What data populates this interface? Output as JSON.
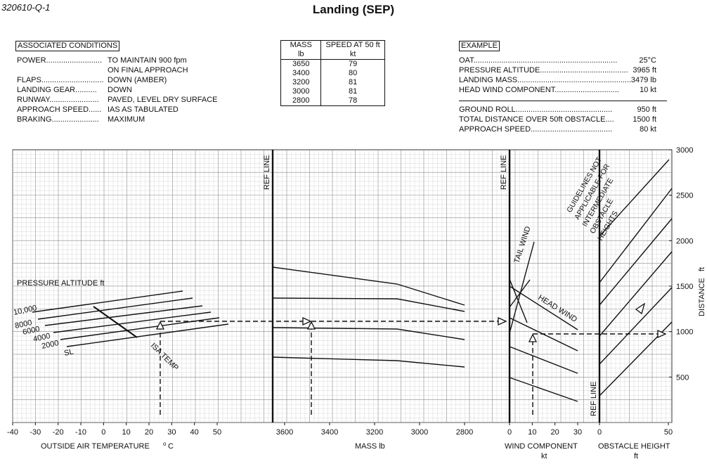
{
  "question_id": "320610-Q-1",
  "title": "Landing (SEP)",
  "associated_conditions": {
    "heading": "ASSOCIATED CONDITIONS",
    "rows": [
      {
        "label": "POWER..........................",
        "value": "TO MAINTAIN 900 fpm"
      },
      {
        "label": "",
        "value": "ON FINAL APPROACH"
      },
      {
        "label": "FLAPS.............................",
        "value": "DOWN (AMBER)"
      },
      {
        "label": "LANDING GEAR..........",
        "value": "DOWN"
      },
      {
        "label": "RUNWAY.......................",
        "value": "PAVED, LEVEL DRY SURFACE"
      },
      {
        "label": "APPROACH SPEED......",
        "value": "IAS AS TABULATED"
      },
      {
        "label": "BRAKING......................",
        "value": "MAXIMUM"
      }
    ]
  },
  "speed_table": {
    "col1_header_1": "MASS",
    "col1_header_2": "lb",
    "col2_header_1": "SPEED AT 50 ft",
    "col2_header_2": "kt",
    "rows": [
      {
        "mass": "3650",
        "speed": "79"
      },
      {
        "mass": "3400",
        "speed": "80"
      },
      {
        "mass": "3200",
        "speed": "81"
      },
      {
        "mass": "3000",
        "speed": "81"
      },
      {
        "mass": "2800",
        "speed": "78"
      }
    ]
  },
  "example": {
    "heading": "EXAMPLE",
    "inputs": [
      {
        "label": "OAT...................................................................",
        "value": "25°C"
      },
      {
        "label": "PRESSURE ALTITUDE.........................................",
        "value": "3965 ft"
      },
      {
        "label": "LANDING MASS.....................................................",
        "value": "3479 lb"
      },
      {
        "label": "HEAD WIND COMPONENT..............................",
        "value": "10 kt"
      }
    ],
    "results": [
      {
        "label": "GROUND ROLL.............................................",
        "value": "950 ft"
      },
      {
        "label": "TOTAL DISTANCE OVER 50ft OBSTACLE....",
        "value": "1500 ft"
      },
      {
        "label": "APPROACH SPEED......................................",
        "value": "80 kt"
      }
    ]
  },
  "chart_data": {
    "type": "line",
    "panels": [
      {
        "name": "oat",
        "xlabel": "OUTSIDE AIR TEMPERATURE",
        "xunit": "°C",
        "xlim": [
          -40,
          50
        ],
        "ticks": [
          "-40",
          "-30",
          "-20",
          "-10",
          "0",
          "10",
          "20",
          "30",
          "40",
          "50"
        ],
        "axis_title": "PRESSURE ALTITUDE  ft",
        "series_labels": [
          "10,000",
          "8000",
          "6000",
          "4000",
          "2000",
          "SL"
        ],
        "isa_label": "ISA TEMP"
      },
      {
        "name": "mass",
        "xlabel": "MASS",
        "xunit": "lb",
        "xlim": [
          3650,
          2800
        ],
        "ticks": [
          "3600",
          "3400",
          "3200",
          "3000",
          "2800"
        ],
        "ref_line_label": "REF LINE"
      },
      {
        "name": "wind",
        "xlabel": "WIND COMPONENT",
        "xunit": "kt",
        "xlim": [
          0,
          30
        ],
        "ticks": [
          "0",
          "10",
          "20",
          "30"
        ],
        "ref_line_label": "REF LINE",
        "tail_wind_label": "TAIL WIND",
        "head_wind_label": "HEAD WIND"
      },
      {
        "name": "obstacle",
        "xlabel": "OBSTACLE HEIGHT",
        "xunit": "ft",
        "xlim": [
          0,
          50
        ],
        "ticks": [
          "0",
          "50"
        ],
        "ref_line_label": "REF LINE",
        "note_lines": [
          "GUIDELINES NOT",
          "APPLICABLE FOR",
          "INTERMEDIATE",
          "OBSTACLE",
          "HEIGHTS"
        ]
      }
    ],
    "y_axis": {
      "label": "DISTANCE",
      "unit": "ft",
      "ylim": [
        0,
        3000
      ],
      "ticks": [
        "500",
        "1000",
        "1500",
        "2000",
        "2500",
        "3000"
      ]
    },
    "example_path": {
      "oat_c": 25,
      "pressure_altitude_ft": 3965,
      "mass_lb": 3479,
      "head_wind_kt": 10,
      "ground_roll_ft": 950,
      "total_distance_50ft_ft": 1500
    }
  }
}
